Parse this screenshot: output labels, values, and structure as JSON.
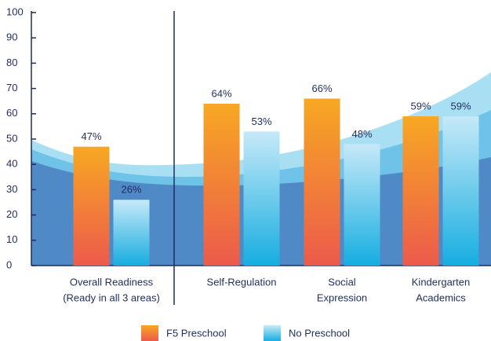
{
  "chart_data": {
    "type": "bar",
    "categories": [
      [
        "Overall Readiness",
        "(Ready in all 3 areas)"
      ],
      [
        "Self-Regulation"
      ],
      [
        "Social",
        "Expression"
      ],
      [
        "Kindergarten",
        "Academics"
      ]
    ],
    "series": [
      {
        "name": "F5 Preschool",
        "color": "#f39a2a",
        "values": [
          47,
          64,
          66,
          59
        ],
        "value_labels": [
          "47%",
          "64%",
          "66%",
          "59%"
        ]
      },
      {
        "name": "No Preschool",
        "color": "#2bb7e6",
        "values": [
          26,
          53,
          48,
          59
        ],
        "value_labels": [
          "26%",
          "53%",
          "48%",
          "59%"
        ]
      }
    ],
    "ylim": [
      0,
      100
    ],
    "yticks": [
      0,
      10,
      20,
      30,
      40,
      50,
      60,
      70,
      80,
      90,
      100
    ]
  }
}
